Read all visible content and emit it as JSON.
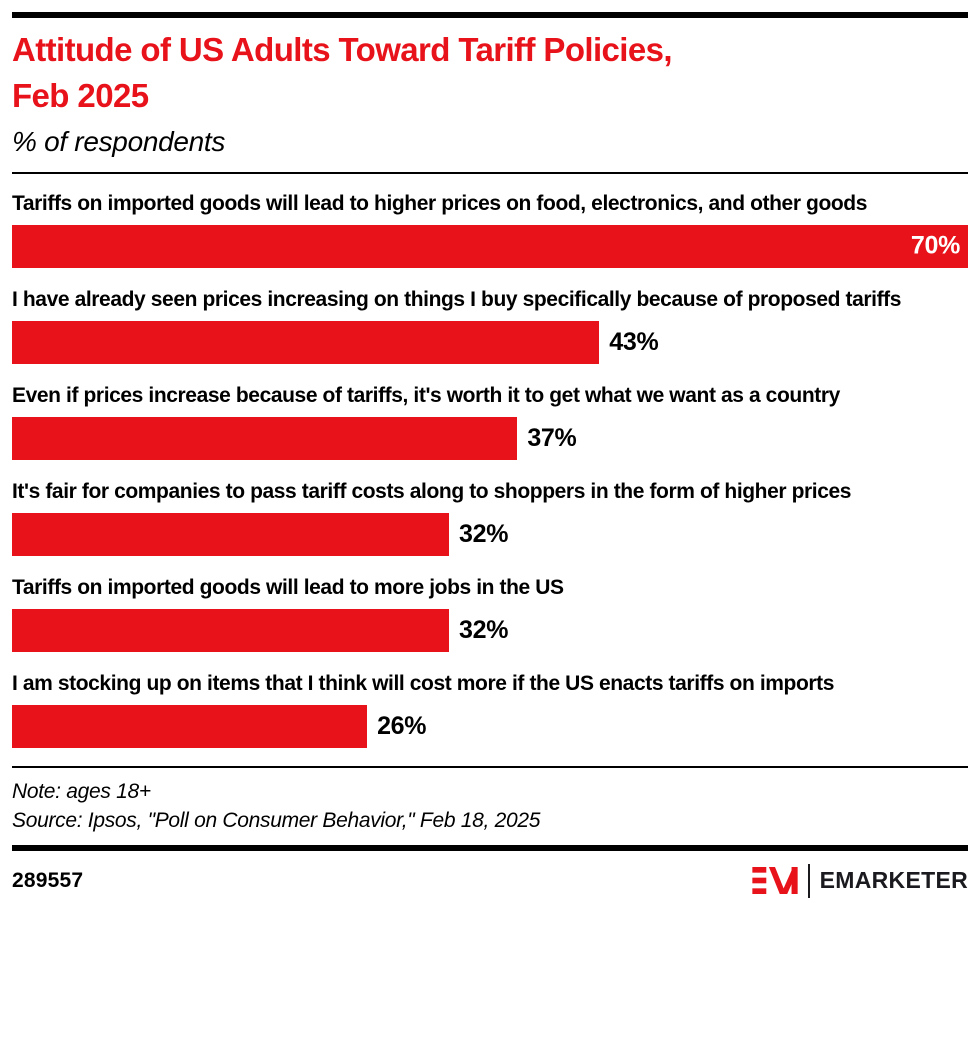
{
  "header": {
    "title": "Attitude of US Adults Toward Tariff Policies,\nFeb 2025",
    "subtitle": "% of respondents"
  },
  "chart_data": {
    "type": "bar",
    "orientation": "horizontal",
    "title": "Attitude of US Adults Toward Tariff Policies, Feb 2025",
    "subtitle": "% of respondents",
    "unit": "%",
    "categories": [
      "Tariffs on imported goods will lead to higher prices on food, electronics, and other goods",
      "I have already seen prices increasing on things I buy specifically because of proposed tariffs",
      "Even if prices increase because of tariffs, it's worth it to get what we want as a country",
      "It's fair for companies to pass tariff costs along to shoppers in the form of higher prices",
      "Tariffs on imported goods will lead to more jobs in the US",
      "I am stocking up on items that I think will cost more if the US enacts tariffs on imports"
    ],
    "values": [
      70,
      43,
      37,
      32,
      32,
      26
    ],
    "value_labels": [
      "70%",
      "43%",
      "37%",
      "32%",
      "32%",
      "26%"
    ],
    "value_label_inside": [
      true,
      false,
      false,
      false,
      false,
      false
    ],
    "xlim": [
      0,
      70
    ],
    "grid": false,
    "legend": false,
    "bar_color": "#e8121a"
  },
  "footer": {
    "note": "Note: ages 18+",
    "source": "Source: Ipsos, \"Poll on Consumer Behavior,\" Feb 18, 2025",
    "chart_id": "289557",
    "brand": "EMARKETER"
  },
  "colors": {
    "accent_red": "#e8121a",
    "text_black": "#000000",
    "logo_ink": "#1b1b1f"
  }
}
